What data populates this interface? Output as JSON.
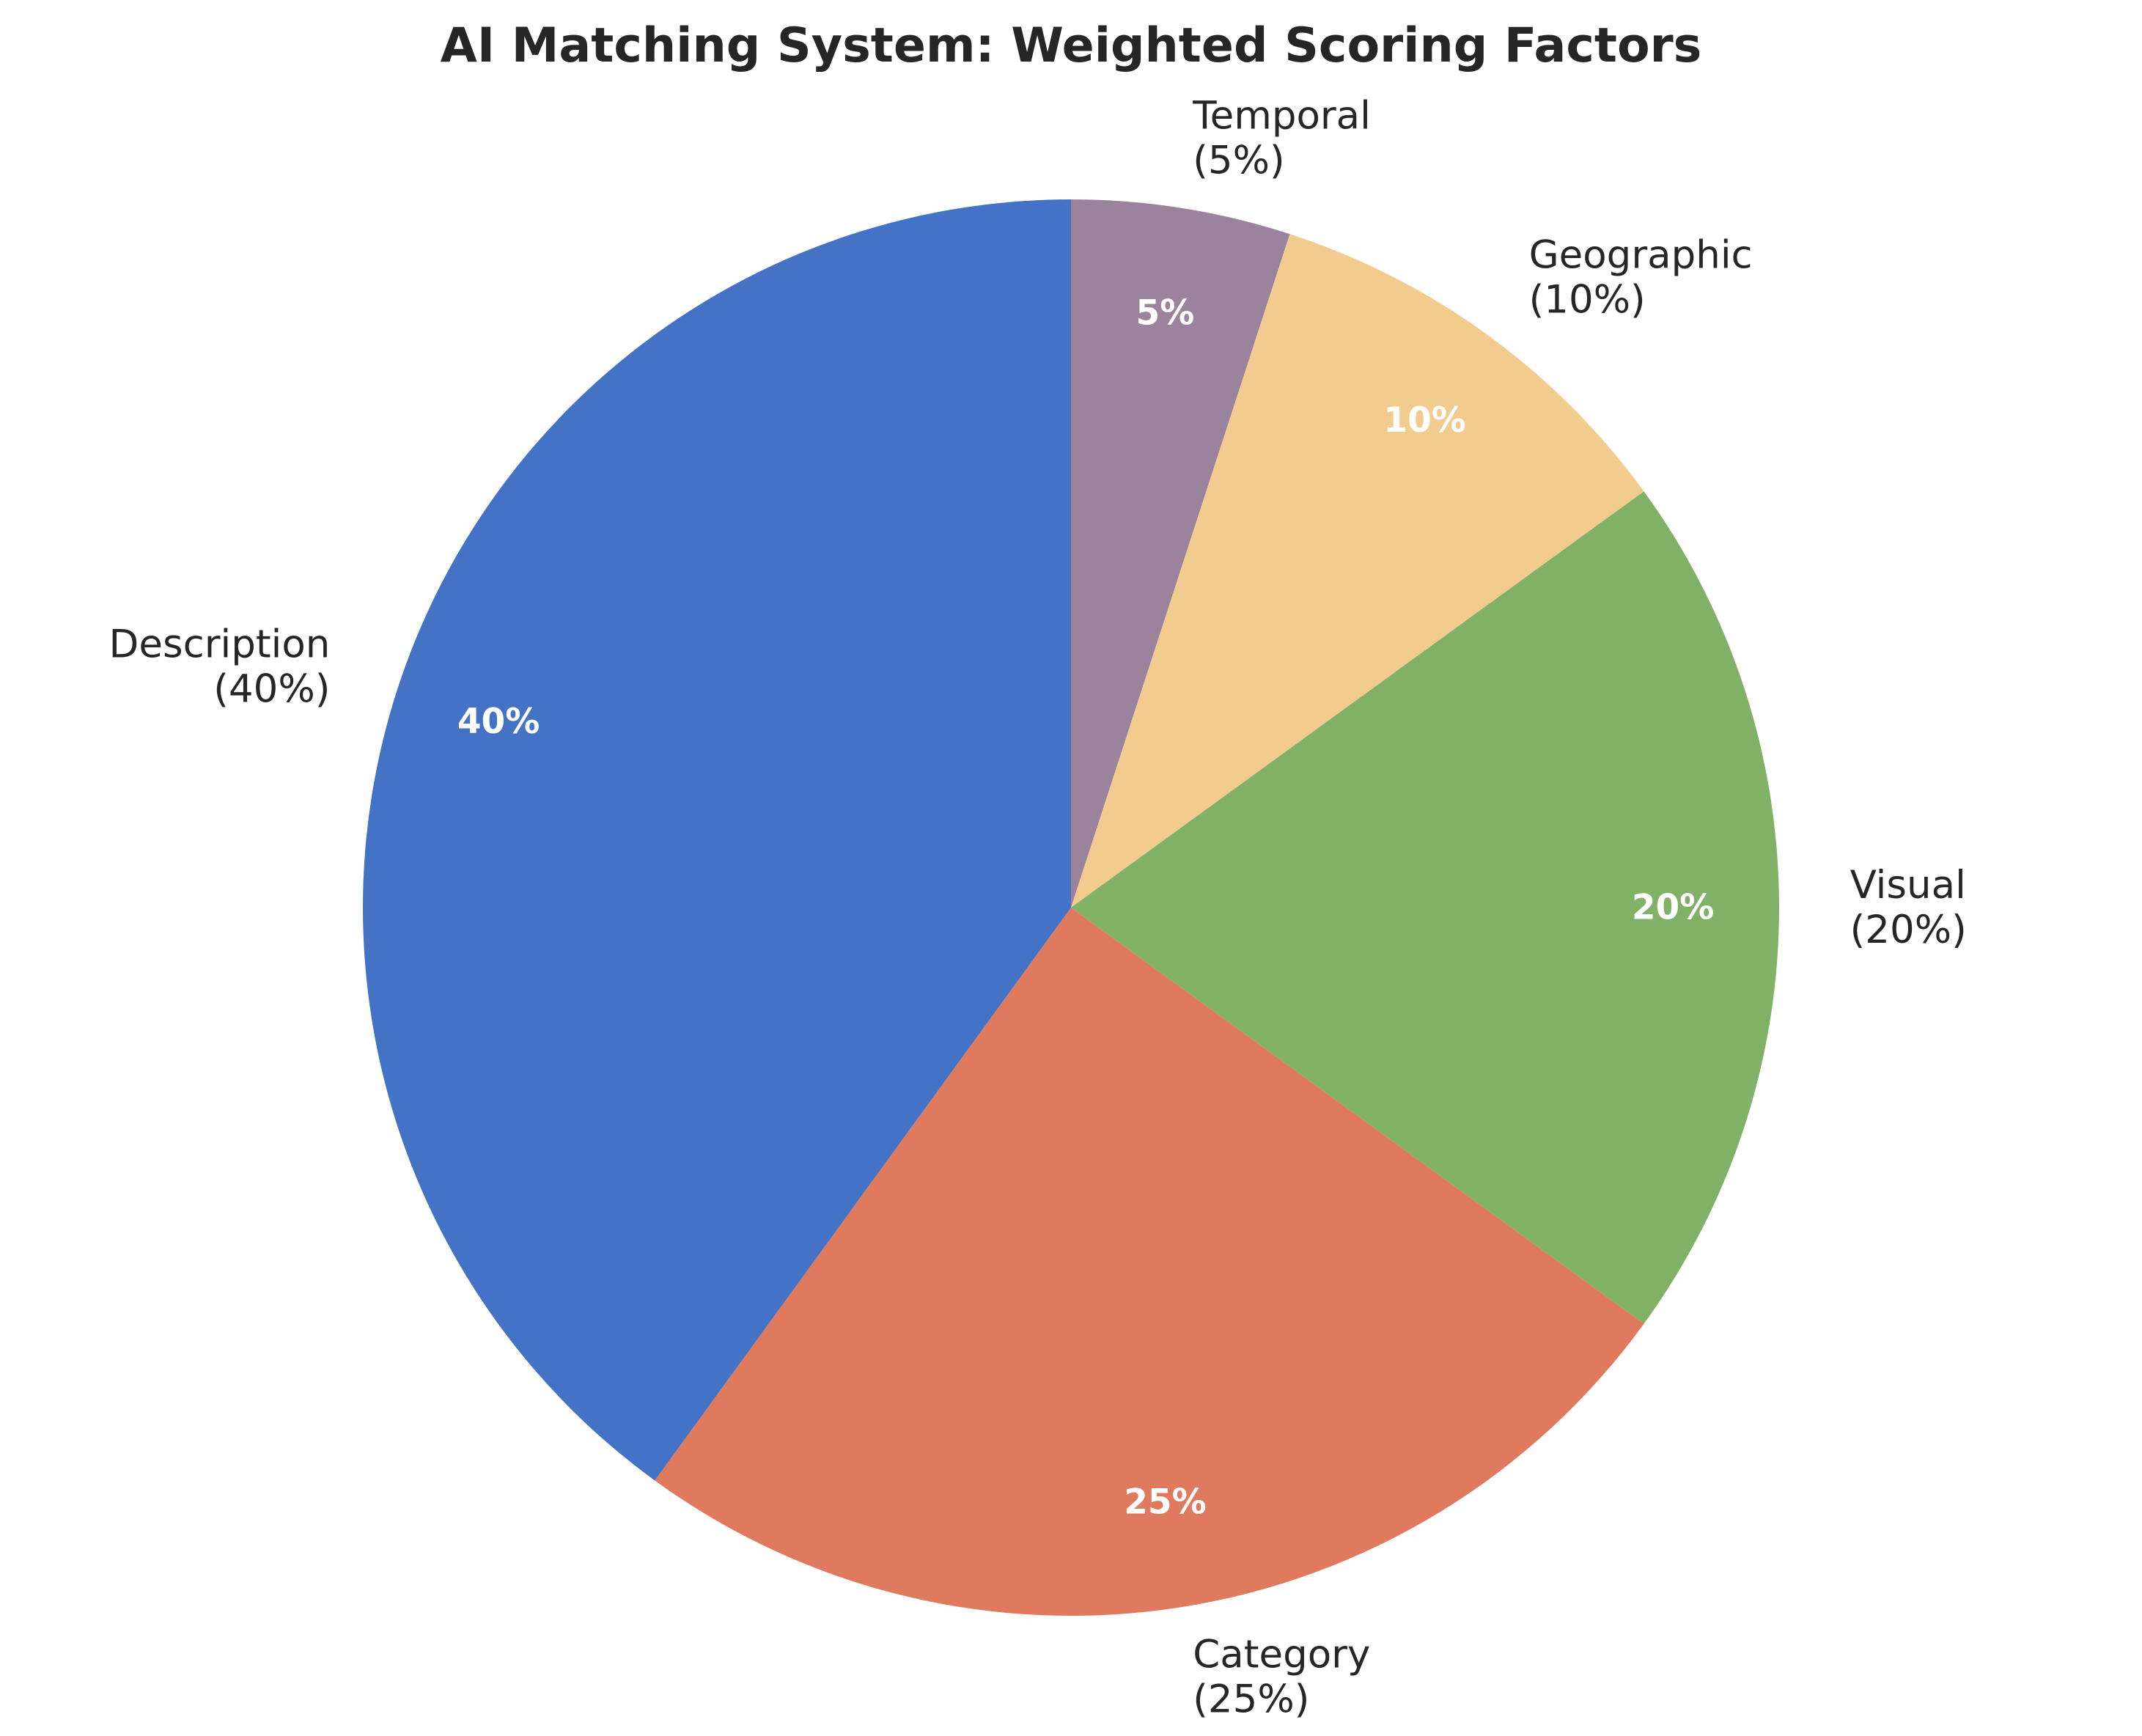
{
  "chart_data": {
    "type": "pie",
    "title": "AI Matching System: Weighted Scoring Factors",
    "start_angle_deg": 90,
    "direction": "clockwise",
    "slices": [
      {
        "name": "Temporal",
        "value": 5,
        "outer_label": "Temporal",
        "outer_pct": "(5%)",
        "pct_label": "5%",
        "color": "#9b839e"
      },
      {
        "name": "Geographic",
        "value": 10,
        "outer_label": "Geographic",
        "outer_pct": "(10%)",
        "pct_label": "10%",
        "color": "#f2cc8f"
      },
      {
        "name": "Visual",
        "value": 20,
        "outer_label": "Visual",
        "outer_pct": "(20%)",
        "pct_label": "20%",
        "color": "#81b166"
      },
      {
        "name": "Category",
        "value": 25,
        "outer_label": "Category",
        "outer_pct": "(25%)",
        "pct_label": "25%",
        "color": "#e07a5f"
      },
      {
        "name": "Description",
        "value": 40,
        "outer_label": "Description",
        "outer_pct": "(40%)",
        "pct_label": "40%",
        "color": "#4472c4"
      }
    ]
  }
}
